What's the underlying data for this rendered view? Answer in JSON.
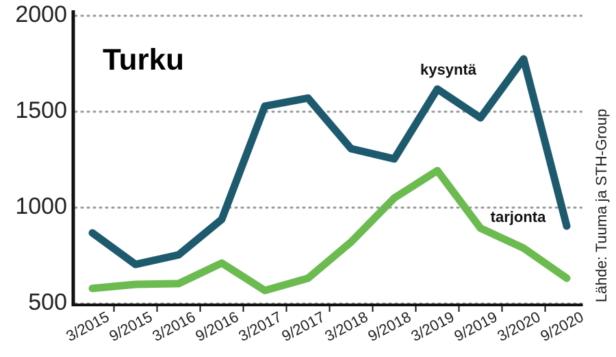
{
  "chart_data": {
    "type": "line",
    "title": "Turku",
    "source": "Lähde: Tuuma ja STH-Group",
    "categories": [
      "3/2015",
      "9/2015",
      "3/2016",
      "9/2016",
      "3/2017",
      "9/2017",
      "3/2018",
      "9/2018",
      "3/2019",
      "9/2019",
      "3/2020",
      "9/2020"
    ],
    "series": [
      {
        "name": "kysyntä",
        "color": "#1d5a6e",
        "values": [
          868,
          704,
          754,
          939,
          1529,
          1571,
          1307,
          1254,
          1618,
          1468,
          1775,
          904
        ]
      },
      {
        "name": "tarjonta",
        "color": "#6cbb50",
        "values": [
          579,
          600,
          604,
          711,
          568,
          632,
          821,
          1050,
          1193,
          893,
          789,
          632
        ]
      }
    ],
    "ylim": [
      500,
      2000
    ],
    "yticks": [
      500,
      1000,
      1500,
      2000
    ],
    "grid": true
  }
}
